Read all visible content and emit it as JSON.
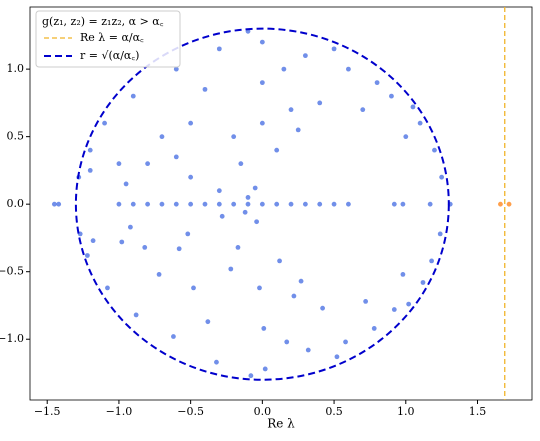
{
  "chart_data": {
    "type": "scatter",
    "xlabel": "Re λ",
    "xlim": [
      -1.62,
      1.88
    ],
    "ylim": [
      -1.45,
      1.46
    ],
    "xticks": [
      {
        "value": -1.5,
        "label": "−1.5"
      },
      {
        "value": -1.0,
        "label": "−1.0"
      },
      {
        "value": -0.5,
        "label": "−0.5"
      },
      {
        "value": 0,
        "label": "0.0"
      },
      {
        "value": 0.5,
        "label": "0.5"
      },
      {
        "value": 1.0,
        "label": "1.0"
      },
      {
        "value": 1.5,
        "label": "1.5"
      }
    ],
    "yticks": [
      {
        "value": -1.0,
        "label": "−1.0"
      },
      {
        "value": -0.5,
        "label": "−0.5"
      },
      {
        "value": 0,
        "label": "0.0"
      },
      {
        "value": 0.5,
        "label": "0.5"
      },
      {
        "value": 1.0,
        "label": "1.0"
      }
    ],
    "series": [
      {
        "color": "#4169e1",
        "x": [
          -0.9,
          -0.6,
          -0.3,
          0,
          0.3,
          0.6,
          0.9,
          1.1,
          1.2,
          -1.1,
          -1.2,
          -1.2,
          -0.8,
          -0.5,
          -0.3,
          -0.1,
          -0.05,
          0.1,
          0.2,
          0.4,
          0.7,
          1.0,
          -0.2,
          -0.5,
          -0.7,
          -1.0,
          -0.4,
          0.0,
          0.15,
          0.5,
          -0.1,
          0.8,
          1.05,
          -0.95,
          -0.6,
          0.0,
          -0.15,
          0.25,
          1.25,
          -1.28,
          -0.88,
          -0.62,
          -0.32,
          0.02,
          0.32,
          0.58,
          0.92,
          1.12,
          1.18,
          -1.08,
          -1.22,
          -1.18,
          -0.82,
          -0.52,
          -0.28,
          -0.12,
          -0.04,
          0.12,
          0.22,
          0.42,
          0.72,
          0.98,
          -0.22,
          -0.48,
          -0.72,
          -0.98,
          -0.38,
          0.01,
          0.17,
          0.52,
          -0.08,
          0.78,
          1.02,
          -0.92,
          -0.58,
          -0.02,
          -0.17,
          0.27,
          1.24,
          -1.27,
          -1.45,
          -1.42,
          -1.0,
          -0.9,
          -0.8,
          -0.7,
          -0.6,
          -0.5,
          -0.4,
          -0.3,
          -0.2,
          -0.1,
          0,
          0.1,
          0.2,
          0.3,
          0.4,
          0.5,
          0.6,
          0.92,
          0.98,
          1.17,
          1.31
        ],
        "y": [
          0.8,
          1.0,
          1.15,
          1.2,
          1.1,
          1.0,
          0.8,
          0.6,
          0.4,
          0.6,
          0.4,
          0.25,
          0.3,
          0.2,
          0.1,
          0.05,
          0.12,
          0.4,
          0.7,
          0.75,
          0.7,
          0.5,
          0.5,
          0.6,
          0.5,
          0.3,
          0.85,
          0.9,
          1.0,
          1.15,
          1.28,
          0.9,
          0.72,
          0.15,
          0.35,
          0.6,
          0.3,
          0.55,
          0.2,
          0.2,
          -0.82,
          -0.98,
          -1.17,
          -1.22,
          -1.08,
          -1.02,
          -0.78,
          -0.58,
          -0.42,
          -0.62,
          -0.38,
          -0.27,
          -0.32,
          -0.22,
          -0.09,
          -0.06,
          -0.13,
          -0.42,
          -0.68,
          -0.77,
          -0.72,
          -0.52,
          -0.48,
          -0.62,
          -0.52,
          -0.28,
          -0.87,
          -0.92,
          -1.02,
          -1.13,
          -1.27,
          -0.92,
          -0.74,
          -0.17,
          -0.33,
          -0.62,
          -0.32,
          -0.57,
          -0.22,
          -0.22,
          0,
          0,
          0,
          0,
          0,
          0,
          0,
          0,
          0,
          0,
          0,
          0,
          0,
          0,
          0,
          0,
          0,
          0,
          0,
          0,
          0,
          0,
          0
        ]
      },
      {
        "color": "#ff7f0e",
        "x": [
          1.66,
          1.72
        ],
        "y": [
          0,
          0
        ]
      }
    ],
    "vline": {
      "x": 1.69,
      "color": "#f0b429"
    },
    "circle": {
      "r": 1.3,
      "color": "#0000cc"
    },
    "legend": {
      "title": "g(z₁, z₂) = z₁z₂, α > α꜀",
      "entries": [
        "Re λ = α/α꜀",
        "r = √(α/α꜀)"
      ]
    }
  }
}
